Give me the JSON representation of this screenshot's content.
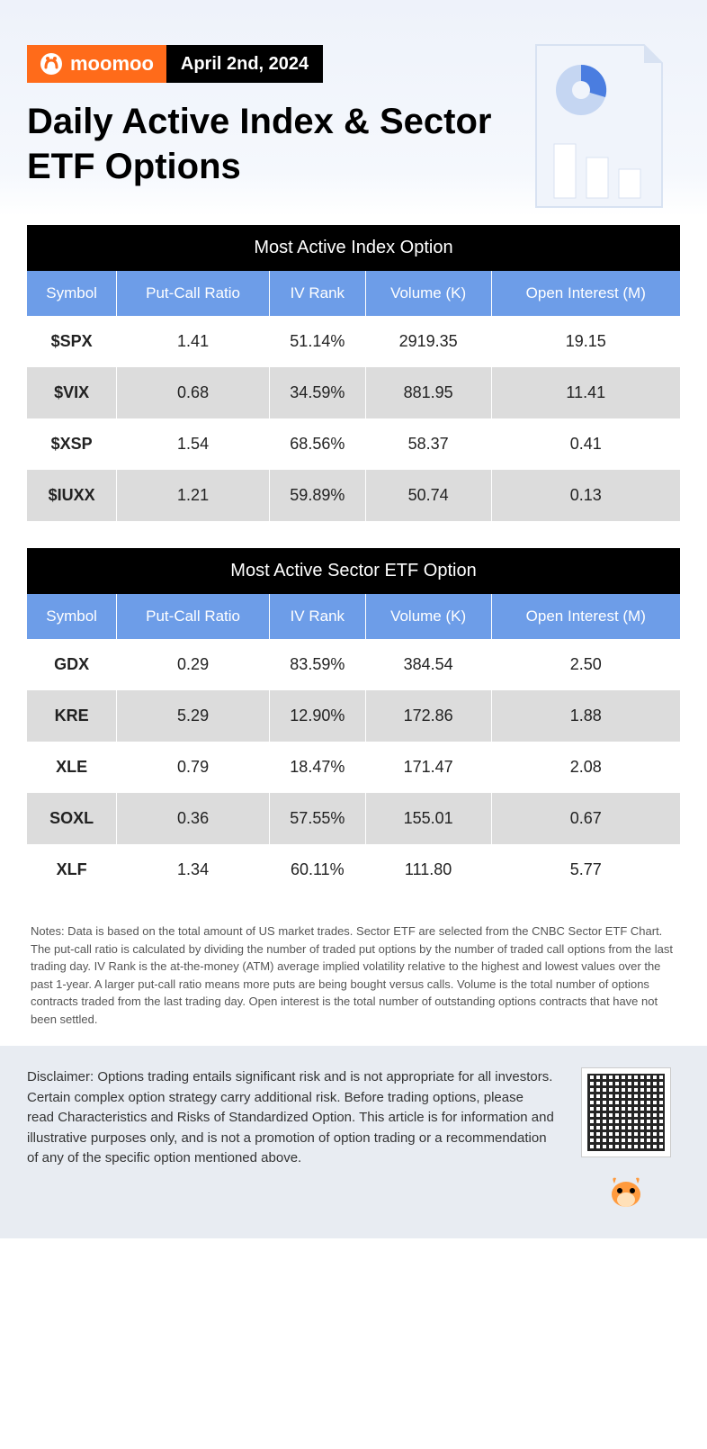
{
  "brand": {
    "name": "moomoo"
  },
  "date": "April 2nd, 2024",
  "title": "Daily Active Index & Sector ETF Options",
  "colors": {
    "brand_orange": "#ff6b1a",
    "header_bg_top": "#eef2fa",
    "table_title_bg": "#000000",
    "table_header_bg": "#6d9de8",
    "row_odd_bg": "#ffffff",
    "row_even_bg": "#dcdcdc",
    "disclaimer_bg": "#e8ecf2",
    "text": "#000000",
    "notes_text": "#555555"
  },
  "typography": {
    "title_fontsize": 40,
    "title_weight": 800,
    "table_title_fontsize": 20,
    "th_fontsize": 17,
    "td_fontsize": 18,
    "notes_fontsize": 13,
    "disclaimer_fontsize": 15
  },
  "tables": {
    "columns": [
      "Symbol",
      "Put-Call Ratio",
      "IV Rank",
      "Volume (K)",
      "Open Interest (M)"
    ],
    "column_widths_pct": [
      20,
      18,
      20,
      21,
      21
    ],
    "index": {
      "title": "Most Active Index Option",
      "rows": [
        {
          "symbol": "$SPX",
          "put_call": "1.41",
          "iv_rank": "51.14%",
          "volume": "2919.35",
          "oi": "19.15"
        },
        {
          "symbol": "$VIX",
          "put_call": "0.68",
          "iv_rank": "34.59%",
          "volume": "881.95",
          "oi": "11.41"
        },
        {
          "symbol": "$XSP",
          "put_call": "1.54",
          "iv_rank": "68.56%",
          "volume": "58.37",
          "oi": "0.41"
        },
        {
          "symbol": "$IUXX",
          "put_call": "1.21",
          "iv_rank": "59.89%",
          "volume": "50.74",
          "oi": "0.13"
        }
      ]
    },
    "sector": {
      "title": "Most Active Sector ETF Option",
      "rows": [
        {
          "symbol": "GDX",
          "put_call": "0.29",
          "iv_rank": "83.59%",
          "volume": "384.54",
          "oi": "2.50"
        },
        {
          "symbol": "KRE",
          "put_call": "5.29",
          "iv_rank": "12.90%",
          "volume": "172.86",
          "oi": "1.88"
        },
        {
          "symbol": "XLE",
          "put_call": "0.79",
          "iv_rank": "18.47%",
          "volume": "171.47",
          "oi": "2.08"
        },
        {
          "symbol": "SOXL",
          "put_call": "0.36",
          "iv_rank": "57.55%",
          "volume": "155.01",
          "oi": "0.67"
        },
        {
          "symbol": "XLF",
          "put_call": "1.34",
          "iv_rank": "60.11%",
          "volume": "111.80",
          "oi": "5.77"
        }
      ]
    }
  },
  "notes": "Notes: Data is based on the total amount of US market trades. Sector ETF are selected from the CNBC Sector ETF Chart. The put-call ratio is calculated by dividing the number of traded put options by the number of traded call options from the last trading day. IV Rank is the at-the-money (ATM) average implied volatility relative to the highest and lowest values over the past 1-year. A larger put-call ratio means more puts are being bought versus calls. Volume is the total number of options contracts traded from the last trading day. Open interest is the total number of outstanding options contracts that have not been settled.",
  "disclaimer": "Disclaimer: Options trading entails significant risk and is not appropriate for all investors. Certain complex option strategy carry additional risk. Before trading options, please read Characteristics and Risks of Standardized Option. This article is for information and illustrative purposes only, and is not a promotion of option trading or a recommendation of any of the specific option mentioned above.",
  "illustration": {
    "type": "document-with-chart",
    "pie_color": "#4a7de0",
    "bars": [
      70,
      50,
      35
    ],
    "bar_color": "#ffffff",
    "paper_color": "#f0f4fb",
    "fold_color": "#d8e2f2"
  }
}
